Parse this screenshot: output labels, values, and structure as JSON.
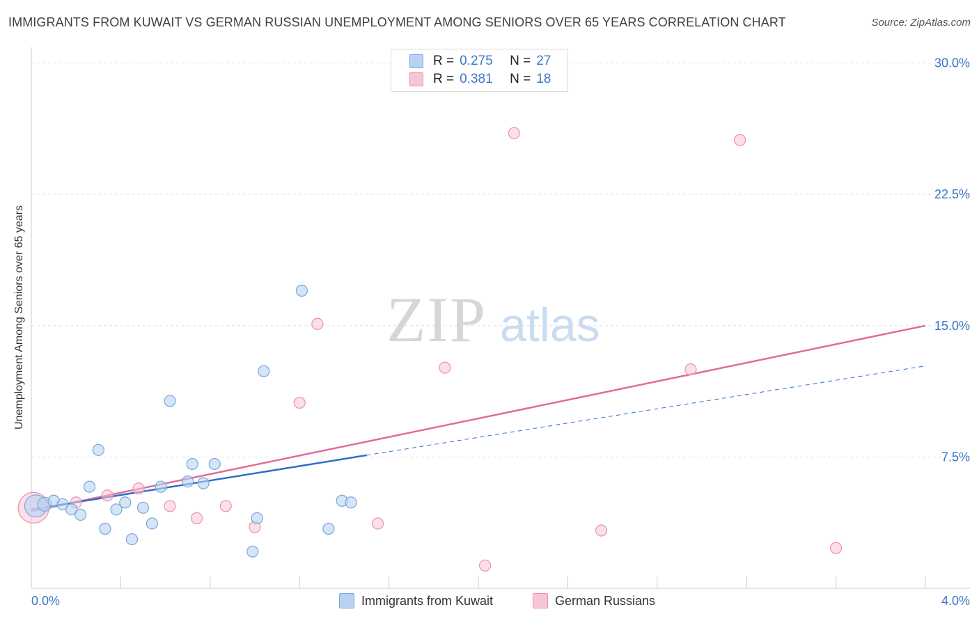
{
  "header": {
    "title": "IMMIGRANTS FROM KUWAIT VS GERMAN RUSSIAN UNEMPLOYMENT AMONG SENIORS OVER 65 YEARS CORRELATION CHART",
    "source": "Source: ZipAtlas.com"
  },
  "watermark": {
    "zip": "ZIP",
    "atlas": "atlas"
  },
  "legend": {
    "kuwait": {
      "r_label": "R =",
      "r_value": "0.275",
      "n_label": "N =",
      "n_value": "27"
    },
    "german_russian": {
      "r_label": "R =",
      "r_value": "0.381",
      "n_label": "N =",
      "n_value": "18"
    }
  },
  "bottom_legend": {
    "kuwait_label": "Immigrants from Kuwait",
    "german_russian_label": "German Russians"
  },
  "colors": {
    "kuwait_fill": "#b8d3f2",
    "kuwait_stroke": "#7aa5d8",
    "kuwait_line": "#2e6fcc",
    "german_fill": "#f7c6d5",
    "german_stroke": "#e892ad",
    "german_line": "#e26b97",
    "tick_label": "#3a78c8",
    "grid": "#e2e2e2"
  },
  "chart_data": {
    "type": "scatter",
    "title": "IMMIGRANTS FROM KUWAIT VS GERMAN RUSSIAN UNEMPLOYMENT AMONG SENIORS OVER 65 YEARS CORRELATION CHART",
    "xlabel": "",
    "ylabel": "Unemployment Among Seniors over 65 years",
    "xlim": [
      0,
      4.0
    ],
    "ylim": [
      0,
      30.5
    ],
    "x_tick_labels": {
      "min": "0.0%",
      "max": "4.0%"
    },
    "y_ticks": [
      {
        "value": 7.5,
        "label": "7.5%"
      },
      {
        "value": 15.0,
        "label": "15.0%"
      },
      {
        "value": 22.5,
        "label": "22.5%"
      },
      {
        "value": 30.0,
        "label": "30.0%"
      }
    ],
    "series": [
      {
        "name": "Immigrants from Kuwait",
        "points": [
          [
            0.02,
            4.7,
            16
          ],
          [
            0.06,
            4.8,
            10
          ],
          [
            0.1,
            5.0,
            8
          ],
          [
            0.14,
            4.8,
            8
          ],
          [
            0.18,
            4.5,
            8
          ],
          [
            0.22,
            4.2,
            8
          ],
          [
            0.26,
            5.8,
            8
          ],
          [
            0.3,
            7.9,
            8
          ],
          [
            0.33,
            3.4,
            8
          ],
          [
            0.38,
            4.5,
            8
          ],
          [
            0.42,
            4.9,
            8
          ],
          [
            0.45,
            2.8,
            8
          ],
          [
            0.5,
            4.6,
            8
          ],
          [
            0.54,
            3.7,
            8
          ],
          [
            0.58,
            5.8,
            8
          ],
          [
            0.62,
            10.7,
            8
          ],
          [
            0.7,
            6.1,
            8
          ],
          [
            0.72,
            7.1,
            8
          ],
          [
            0.77,
            6.0,
            8
          ],
          [
            0.82,
            7.1,
            8
          ],
          [
            0.99,
            2.1,
            8
          ],
          [
            1.01,
            4.0,
            8
          ],
          [
            1.04,
            12.4,
            8
          ],
          [
            1.21,
            17.0,
            8
          ],
          [
            1.33,
            3.4,
            8
          ],
          [
            1.39,
            5.0,
            8
          ],
          [
            1.43,
            4.9,
            8
          ]
        ],
        "trend": {
          "x0": 0.0,
          "y0": 4.5,
          "x1": 1.5,
          "y1": 7.6,
          "dash_x_end": 4.0,
          "dash_y_end": 12.7
        }
      },
      {
        "name": "German Russians",
        "points": [
          [
            0.01,
            4.6,
            22
          ],
          [
            0.2,
            4.9,
            8
          ],
          [
            0.34,
            5.3,
            8
          ],
          [
            0.48,
            5.7,
            8
          ],
          [
            0.62,
            4.7,
            8
          ],
          [
            0.74,
            4.0,
            8
          ],
          [
            0.87,
            4.7,
            8
          ],
          [
            1.0,
            3.5,
            8
          ],
          [
            1.2,
            10.6,
            8
          ],
          [
            1.28,
            15.1,
            8
          ],
          [
            1.55,
            3.7,
            8
          ],
          [
            1.85,
            12.6,
            8
          ],
          [
            2.03,
            1.3,
            8
          ],
          [
            2.16,
            26.0,
            8
          ],
          [
            2.55,
            3.3,
            8
          ],
          [
            2.95,
            12.5,
            8
          ],
          [
            3.17,
            25.6,
            8
          ],
          [
            3.6,
            2.3,
            8
          ]
        ],
        "trend": {
          "x0": 0.0,
          "y0": 4.4,
          "x1": 4.0,
          "y1": 15.0
        }
      }
    ]
  }
}
